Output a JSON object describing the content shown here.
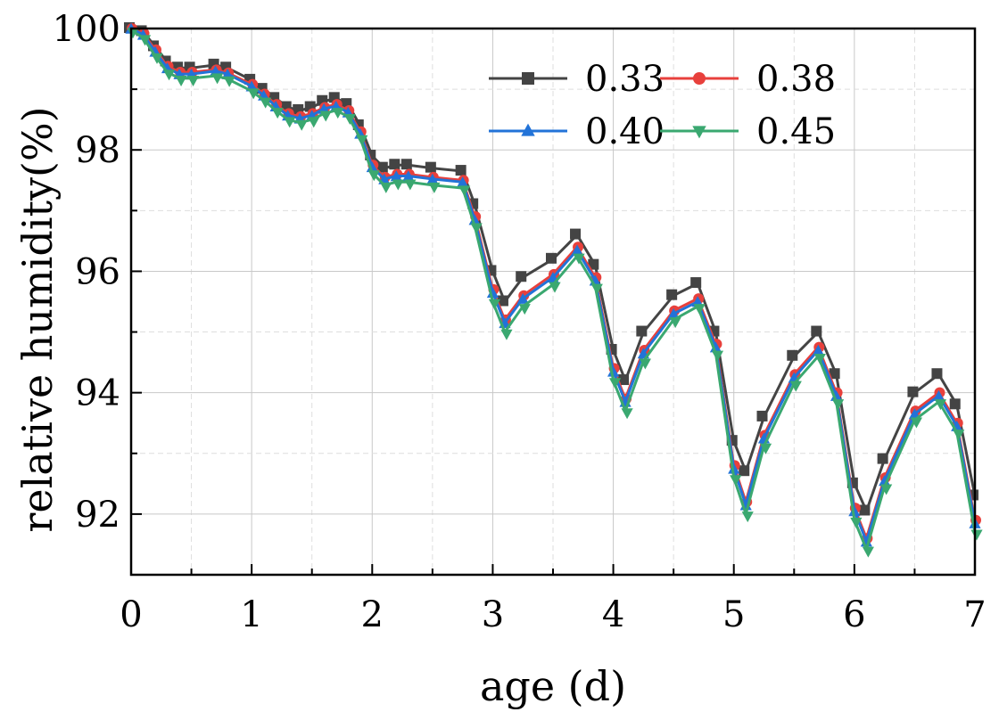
{
  "chart_data": {
    "type": "line",
    "title": "",
    "xlabel": "age (d)",
    "ylabel": "relative humidity(%)",
    "xlim": [
      0,
      7
    ],
    "ylim": [
      91,
      100
    ],
    "xticks": [
      0,
      1,
      2,
      3,
      4,
      5,
      6,
      7
    ],
    "xtick_labels": [
      "0",
      "1",
      "2",
      "3",
      "4",
      "5",
      "6",
      "7"
    ],
    "yticks": [
      92,
      94,
      96,
      98,
      100
    ],
    "ytick_labels": [
      "92",
      "94",
      "96",
      "98",
      "100"
    ],
    "grid": true,
    "legend_position": "top-right",
    "x": [
      0,
      0.1,
      0.2,
      0.3,
      0.4,
      0.5,
      0.7,
      0.8,
      1.0,
      1.1,
      1.2,
      1.3,
      1.4,
      1.5,
      1.6,
      1.7,
      1.8,
      1.9,
      2.0,
      2.1,
      2.2,
      2.3,
      2.5,
      2.75,
      2.85,
      3.0,
      3.1,
      3.25,
      3.5,
      3.7,
      3.85,
      4.0,
      4.1,
      4.25,
      4.5,
      4.7,
      4.85,
      5.0,
      5.1,
      5.25,
      5.5,
      5.7,
      5.85,
      6.0,
      6.1,
      6.25,
      6.5,
      6.7,
      6.85,
      7.0
    ],
    "series": [
      {
        "name": "0.33",
        "color": "#444444",
        "marker": "square",
        "values": [
          100,
          99.95,
          99.7,
          99.45,
          99.35,
          99.35,
          99.4,
          99.35,
          99.15,
          99.0,
          98.85,
          98.7,
          98.65,
          98.7,
          98.8,
          98.85,
          98.75,
          98.4,
          97.9,
          97.7,
          97.75,
          97.75,
          97.7,
          97.65,
          97.1,
          96.0,
          95.5,
          95.9,
          96.2,
          96.6,
          96.1,
          94.7,
          94.2,
          95.0,
          95.6,
          95.8,
          95.0,
          93.2,
          92.7,
          93.6,
          94.6,
          95.0,
          94.3,
          92.5,
          92.05,
          92.9,
          94.0,
          94.3,
          93.8,
          92.3
        ]
      },
      {
        "name": "0.38",
        "color": "#e8403c",
        "marker": "circle",
        "values": [
          100,
          99.92,
          99.65,
          99.38,
          99.28,
          99.28,
          99.32,
          99.27,
          99.08,
          98.92,
          98.75,
          98.6,
          98.55,
          98.6,
          98.7,
          98.75,
          98.65,
          98.3,
          97.75,
          97.55,
          97.6,
          97.6,
          97.55,
          97.5,
          96.9,
          95.7,
          95.2,
          95.6,
          95.95,
          96.4,
          95.9,
          94.4,
          93.9,
          94.7,
          95.35,
          95.55,
          94.8,
          92.8,
          92.2,
          93.3,
          94.3,
          94.75,
          94.0,
          92.1,
          91.6,
          92.6,
          93.7,
          94.0,
          93.5,
          91.9
        ]
      },
      {
        "name": "0.40",
        "color": "#2273d8",
        "marker": "triangle-up",
        "values": [
          100,
          99.9,
          99.62,
          99.35,
          99.25,
          99.25,
          99.3,
          99.25,
          99.05,
          98.9,
          98.72,
          98.57,
          98.52,
          98.57,
          98.68,
          98.72,
          98.62,
          98.27,
          97.72,
          97.52,
          97.57,
          97.57,
          97.52,
          97.47,
          96.85,
          95.65,
          95.15,
          95.55,
          95.9,
          96.35,
          95.85,
          94.35,
          93.85,
          94.65,
          95.3,
          95.5,
          94.75,
          92.75,
          92.15,
          93.25,
          94.25,
          94.7,
          93.95,
          92.05,
          91.55,
          92.55,
          93.65,
          93.95,
          93.45,
          91.85
        ]
      },
      {
        "name": "0.45",
        "color": "#3aa870",
        "marker": "triangle-down",
        "values": [
          99.97,
          99.85,
          99.55,
          99.28,
          99.18,
          99.18,
          99.22,
          99.17,
          98.97,
          98.82,
          98.65,
          98.5,
          98.45,
          98.5,
          98.6,
          98.65,
          98.55,
          98.2,
          97.62,
          97.42,
          97.47,
          97.47,
          97.42,
          97.37,
          96.75,
          95.5,
          95.0,
          95.42,
          95.78,
          96.25,
          95.75,
          94.2,
          93.7,
          94.52,
          95.2,
          95.42,
          94.65,
          92.6,
          92.0,
          93.12,
          94.15,
          94.6,
          93.85,
          91.9,
          91.42,
          92.45,
          93.55,
          93.85,
          93.35,
          91.7
        ]
      }
    ]
  }
}
